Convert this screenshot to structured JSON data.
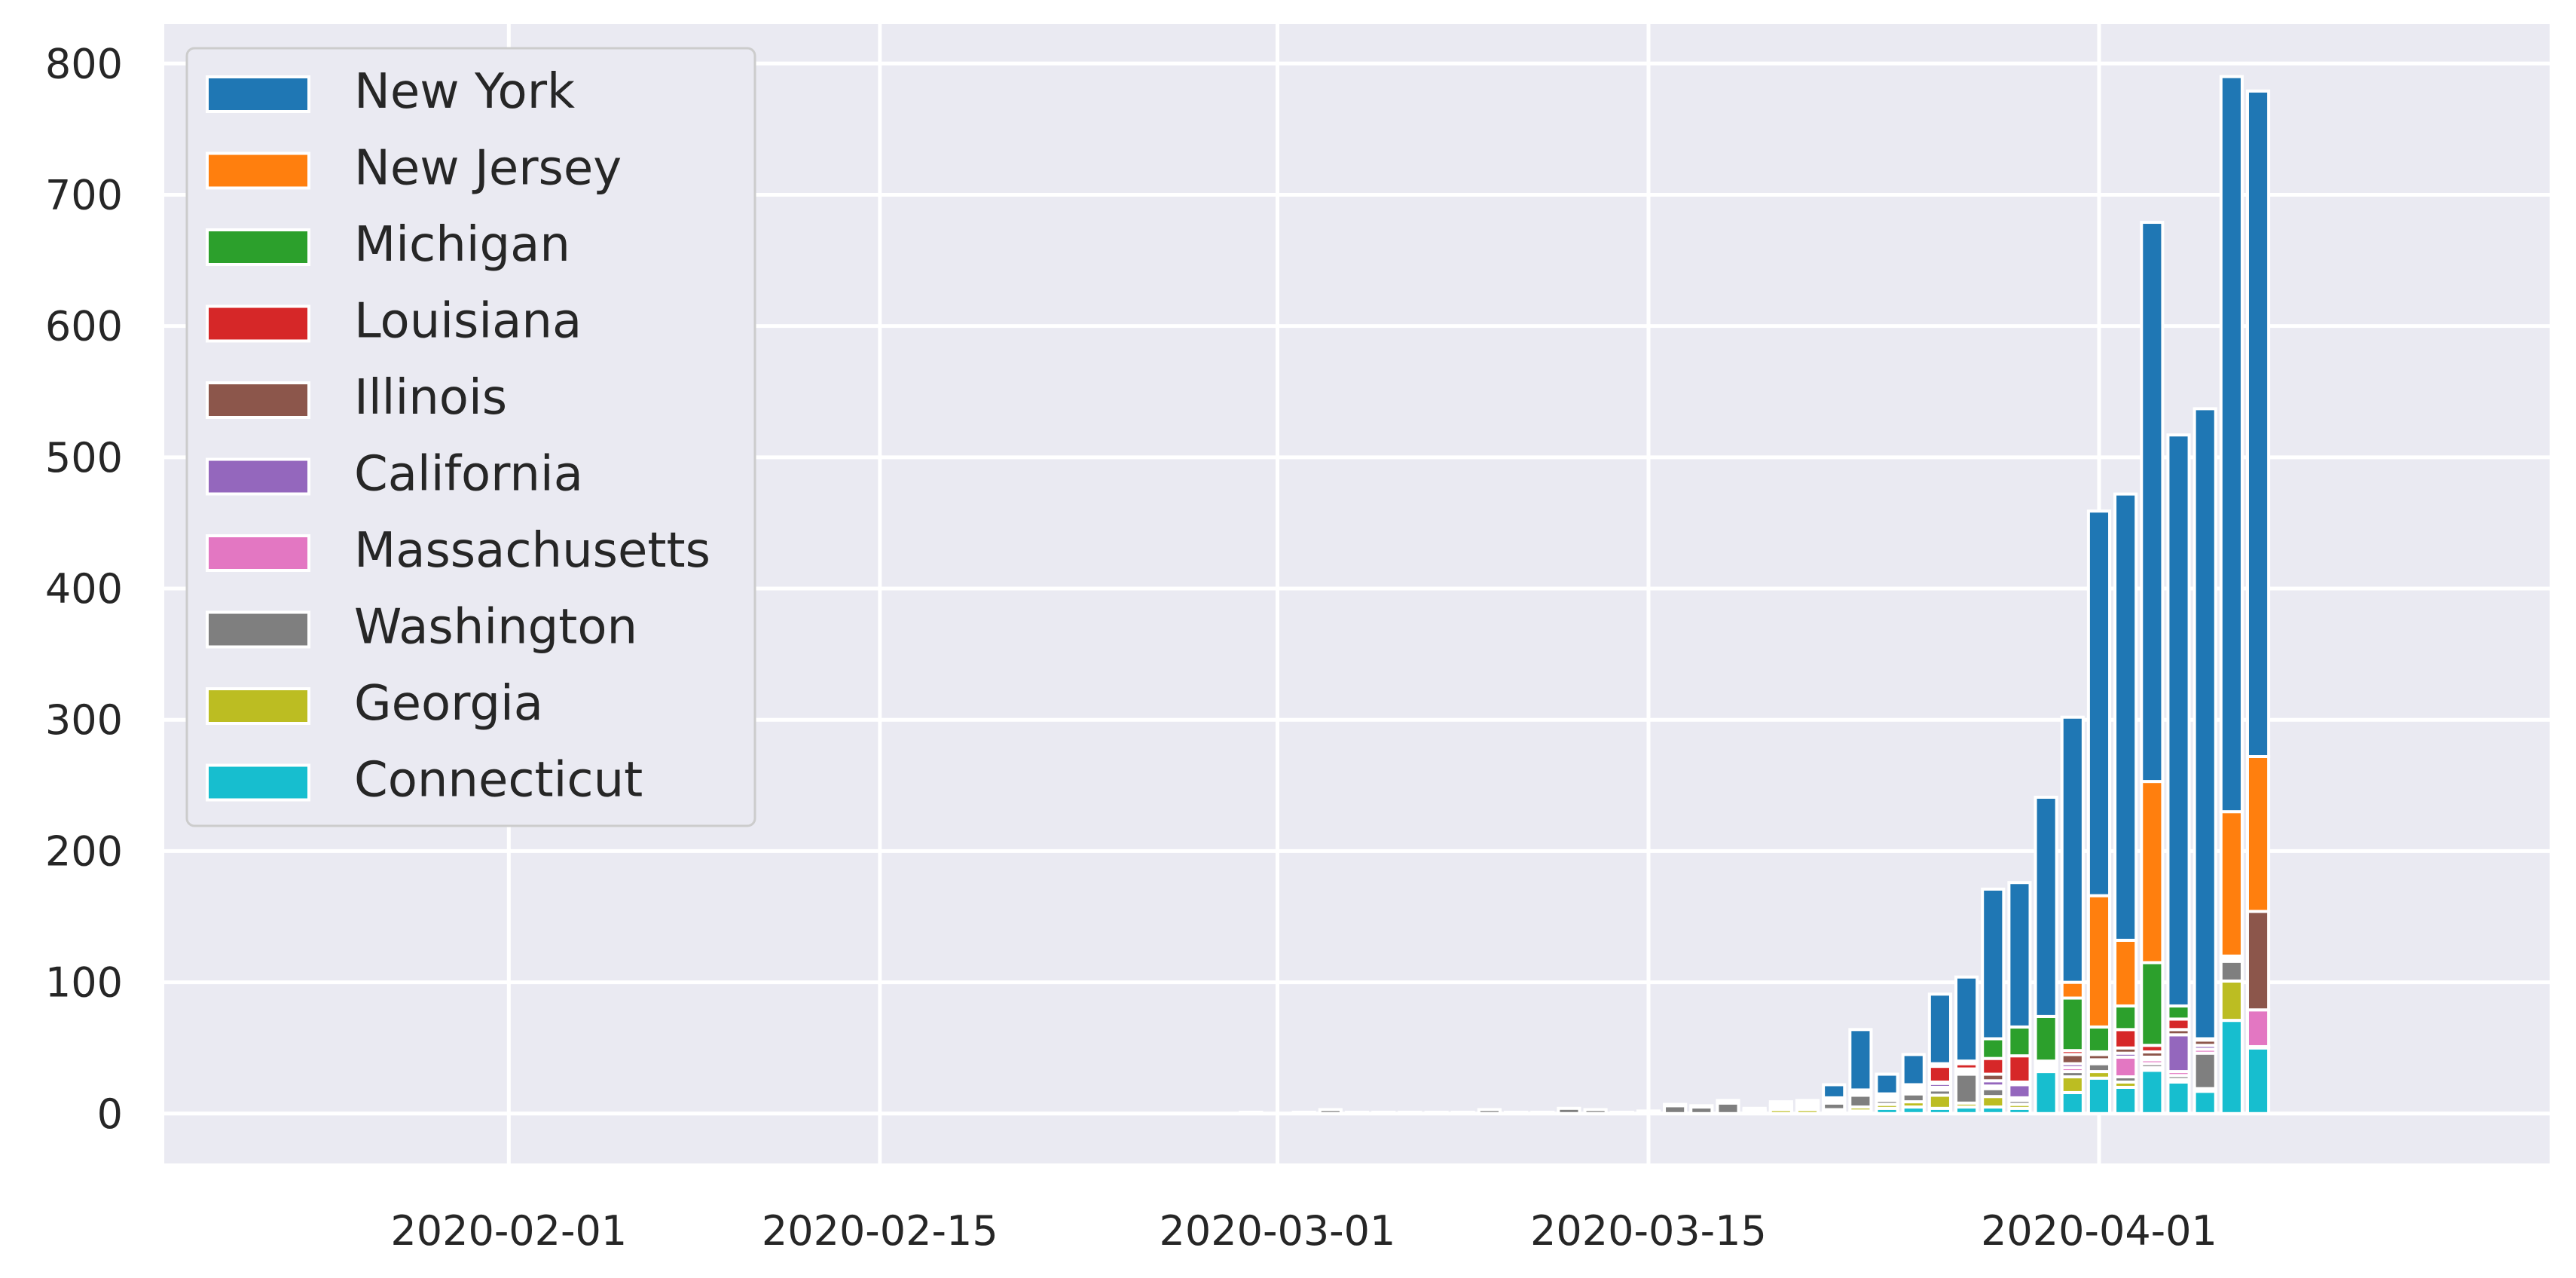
{
  "chart_data": {
    "type": "bar",
    "stacked": true,
    "x_axis_type": "date",
    "xlim": [
      "2020-01-19",
      "2020-04-18"
    ],
    "ylim": [
      -38,
      830
    ],
    "yticks": [
      0,
      100,
      200,
      300,
      400,
      500,
      600,
      700,
      800
    ],
    "xticks": [
      "2020-02-01",
      "2020-02-15",
      "2020-03-01",
      "2020-03-15",
      "2020-04-01"
    ],
    "grid": true,
    "legend_position": "top-left",
    "x": [
      "2020-02-29",
      "2020-03-01",
      "2020-03-02",
      "2020-03-03",
      "2020-03-04",
      "2020-03-05",
      "2020-03-06",
      "2020-03-07",
      "2020-03-08",
      "2020-03-09",
      "2020-03-10",
      "2020-03-11",
      "2020-03-12",
      "2020-03-13",
      "2020-03-14",
      "2020-03-15",
      "2020-03-16",
      "2020-03-17",
      "2020-03-18",
      "2020-03-19",
      "2020-03-20",
      "2020-03-21",
      "2020-03-22",
      "2020-03-23",
      "2020-03-24",
      "2020-03-25",
      "2020-03-26",
      "2020-03-27",
      "2020-03-28",
      "2020-03-29",
      "2020-03-30",
      "2020-03-31",
      "2020-04-01",
      "2020-04-02",
      "2020-04-03",
      "2020-04-04",
      "2020-04-05",
      "2020-04-06",
      "2020-04-07",
      "2020-04-08"
    ],
    "series": [
      {
        "name": "Connecticut",
        "color": "#17becf",
        "values": [
          0,
          0,
          0,
          0,
          0,
          0,
          0,
          0,
          0,
          0,
          0,
          0,
          0,
          0,
          0,
          0,
          0,
          0,
          0,
          0,
          0,
          0,
          1,
          2,
          4,
          5,
          4,
          5,
          5,
          4,
          32,
          16,
          27,
          20,
          33,
          24,
          17,
          71,
          50,
          0
        ]
      },
      {
        "name": "Georgia",
        "color": "#bcbd22",
        "values": [
          0,
          0,
          0,
          0,
          0,
          0,
          0,
          0,
          0,
          0,
          0,
          0,
          0,
          0,
          0,
          0,
          0,
          0,
          0,
          2,
          3,
          3,
          2,
          3,
          3,
          4,
          10,
          3,
          8,
          3,
          1,
          12,
          5,
          4,
          2,
          2,
          2,
          30,
          0,
          0
        ]
      },
      {
        "name": "Washington",
        "color": "#7f7f7f",
        "values": [
          1,
          0,
          1,
          3,
          1,
          1,
          1,
          1,
          1,
          3,
          1,
          1,
          4,
          3,
          1,
          1,
          6,
          5,
          8,
          1,
          2,
          2,
          5,
          9,
          3,
          6,
          4,
          22,
          6,
          3,
          2,
          4,
          6,
          4,
          3,
          3,
          27,
          15,
          1,
          0
        ]
      },
      {
        "name": "Massachusetts",
        "color": "#e377c2",
        "values": [
          0,
          0,
          0,
          0,
          0,
          0,
          0,
          0,
          0,
          0,
          0,
          0,
          0,
          0,
          0,
          0,
          0,
          0,
          0,
          0,
          2,
          1,
          2,
          1,
          0,
          0,
          2,
          0,
          2,
          2,
          0,
          3,
          1,
          15,
          3,
          3,
          3,
          0,
          28,
          0
        ]
      },
      {
        "name": "California",
        "color": "#9467bd",
        "values": [
          0,
          0,
          0,
          0,
          0,
          0,
          0,
          0,
          0,
          0,
          0,
          0,
          0,
          0,
          0,
          1,
          1,
          1,
          2,
          1,
          2,
          2,
          1,
          2,
          2,
          1,
          3,
          2,
          4,
          10,
          2,
          3,
          2,
          3,
          2,
          28,
          3,
          2,
          0,
          0
        ]
      },
      {
        "name": "Illinois",
        "color": "#8c564b",
        "values": [
          0,
          0,
          0,
          0,
          0,
          0,
          0,
          0,
          0,
          0,
          0,
          0,
          0,
          0,
          0,
          0,
          0,
          0,
          0,
          0,
          0,
          1,
          1,
          0,
          2,
          2,
          1,
          2,
          5,
          2,
          2,
          7,
          4,
          4,
          4,
          4,
          4,
          2,
          75,
          0
        ]
      },
      {
        "name": "Louisiana",
        "color": "#d62728",
        "values": [
          0,
          0,
          0,
          0,
          0,
          0,
          0,
          0,
          0,
          0,
          0,
          0,
          0,
          0,
          0,
          0,
          0,
          0,
          0,
          0,
          0,
          1,
          0,
          1,
          1,
          2,
          12,
          4,
          12,
          20,
          1,
          3,
          2,
          14,
          5,
          8,
          1,
          0,
          0,
          0
        ]
      },
      {
        "name": "Michigan",
        "color": "#2ca02c",
        "values": [
          0,
          0,
          0,
          0,
          0,
          0,
          0,
          0,
          0,
          0,
          0,
          0,
          0,
          0,
          0,
          0,
          0,
          0,
          0,
          0,
          0,
          0,
          0,
          0,
          0,
          2,
          2,
          2,
          15,
          22,
          34,
          40,
          19,
          18,
          63,
          10,
          0,
          0,
          0,
          0
        ]
      },
      {
        "name": "New Jersey",
        "color": "#ff7f0e",
        "values": [
          0,
          0,
          0,
          0,
          0,
          0,
          0,
          0,
          0,
          0,
          0,
          0,
          0,
          0,
          0,
          0,
          0,
          0,
          0,
          0,
          0,
          0,
          0,
          0,
          0,
          0,
          0,
          0,
          0,
          0,
          0,
          12,
          100,
          50,
          138,
          0,
          0,
          110,
          118,
          0
        ]
      },
      {
        "name": "New York",
        "color": "#1f77b4",
        "values": [
          0,
          0,
          0,
          0,
          0,
          0,
          0,
          0,
          0,
          0,
          0,
          0,
          0,
          0,
          0,
          0,
          0,
          0,
          0,
          0,
          0,
          0,
          10,
          46,
          15,
          23,
          53,
          64,
          114,
          110,
          167,
          202,
          293,
          340,
          426,
          435,
          480,
          560,
          507,
          0
        ]
      }
    ]
  }
}
